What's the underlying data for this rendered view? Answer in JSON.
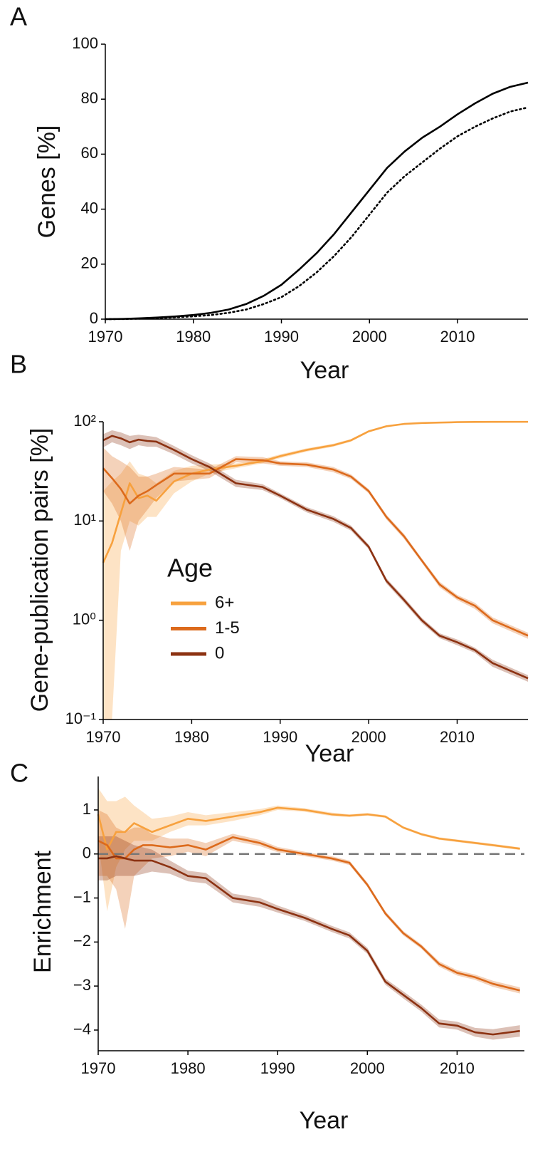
{
  "chart_data": [
    {
      "type": "line",
      "panel_label": "A",
      "x_label": "Year",
      "y_label": "Genes [%]",
      "x": [
        1970,
        1972,
        1974,
        1976,
        1978,
        1980,
        1982,
        1984,
        1986,
        1988,
        1990,
        1992,
        1994,
        1996,
        1998,
        2000,
        2002,
        2004,
        2006,
        2008,
        2010,
        2012,
        2014,
        2016,
        2018
      ],
      "xlim": [
        1970,
        2018
      ],
      "xticks": [
        1970,
        1980,
        1990,
        2000,
        2010
      ],
      "ylim": [
        0,
        100
      ],
      "yticks": [
        0,
        20,
        40,
        60,
        80,
        100
      ],
      "series": [
        {
          "color": "#000000",
          "dash": "solid",
          "values": [
            0,
            0.1,
            0.3,
            0.6,
            1,
            1.5,
            2.3,
            3.5,
            5.5,
            8.5,
            12.5,
            18,
            24,
            31,
            39,
            47,
            55,
            61,
            66,
            70,
            74.5,
            78.5,
            82,
            84.5,
            86
          ]
        },
        {
          "color": "#000000",
          "dash": "dotted",
          "values": [
            0,
            0.05,
            0.2,
            0.4,
            0.7,
            1,
            1.5,
            2.3,
            3.5,
            5.5,
            8,
            12,
            17,
            23,
            30,
            38,
            46,
            52,
            57,
            62,
            66.5,
            70,
            73,
            75.5,
            77
          ]
        }
      ]
    },
    {
      "type": "line",
      "panel_label": "B",
      "x_label": "Year",
      "y_label": "Gene-publication pairs [%]",
      "yscale": "log",
      "legend": "center left",
      "legend_title": "Age",
      "x": [
        1970,
        1971,
        1972,
        1973,
        1974,
        1975,
        1976,
        1978,
        1980,
        1982,
        1985,
        1988,
        1990,
        1993,
        1996,
        1998,
        2000,
        2002,
        2004,
        2006,
        2008,
        2010,
        2012,
        2014,
        2018
      ],
      "xlim": [
        1970,
        2018
      ],
      "xticks": [
        1970,
        1980,
        1990,
        2000,
        2010
      ],
      "ylim": [
        0.1,
        100
      ],
      "yticks": [
        {
          "value": 0.1,
          "label": "10⁻¹"
        },
        {
          "value": 1,
          "label": "10⁰"
        },
        {
          "value": 10,
          "label": "10¹"
        },
        {
          "value": 100,
          "label": "10²"
        }
      ],
      "series": [
        {
          "name": "6+",
          "color": "#f7a13e",
          "values": [
            3.8,
            6,
            12,
            24,
            17,
            18,
            16,
            25,
            30,
            33,
            36,
            40,
            45,
            52,
            58,
            65,
            80,
            90,
            95,
            97,
            98,
            99,
            99.5,
            99.7,
            99.8
          ],
          "lower": [
            0.1,
            0.1,
            5,
            10,
            9,
            11,
            11,
            19,
            25,
            30,
            34,
            38,
            43,
            50,
            56,
            63,
            78,
            88,
            93,
            96,
            97,
            98,
            99,
            99.2,
            99.4
          ],
          "upper": [
            20,
            25,
            30,
            40,
            30,
            28,
            24,
            32,
            36,
            37,
            38,
            42,
            47,
            54,
            60,
            67,
            82,
            92,
            97,
            98,
            99,
            100,
            100,
            100,
            100
          ]
        },
        {
          "name": "1-5",
          "color": "#dc6a1c",
          "values": [
            34,
            27,
            21,
            15,
            18,
            20,
            23,
            30,
            30,
            30,
            42,
            41,
            38,
            37,
            33,
            28,
            20,
            11,
            7,
            4,
            2.3,
            1.7,
            1.4,
            1,
            0.7
          ],
          "lower": [
            20,
            15,
            10,
            5,
            10,
            13,
            17,
            25,
            26,
            27,
            39,
            38,
            36,
            35,
            31,
            26.5,
            19,
            10.4,
            6.6,
            3.8,
            2.15,
            1.6,
            1.3,
            0.93,
            0.65
          ],
          "upper": [
            55,
            45,
            40,
            35,
            28,
            28,
            30,
            35,
            34,
            33,
            45,
            44,
            40,
            39,
            35,
            29.5,
            21,
            11.6,
            7.4,
            4.2,
            2.45,
            1.8,
            1.5,
            1.07,
            0.75
          ]
        },
        {
          "name": "0",
          "color": "#8c3212",
          "values": [
            65,
            72,
            68,
            62,
            66,
            64,
            63,
            52,
            42,
            35,
            24,
            22,
            18,
            13,
            10.5,
            8.5,
            5.5,
            2.5,
            1.6,
            1,
            0.7,
            0.6,
            0.5,
            0.37,
            0.26
          ],
          "lower": [
            55,
            62,
            58,
            53,
            58,
            56,
            56,
            47,
            38,
            32,
            22,
            20.5,
            17,
            12.2,
            9.8,
            8,
            5.2,
            2.35,
            1.5,
            0.94,
            0.66,
            0.56,
            0.47,
            0.34,
            0.24
          ],
          "upper": [
            75,
            82,
            78,
            72,
            74,
            72,
            70,
            57,
            46,
            38,
            26,
            23.5,
            19,
            13.8,
            11.2,
            9,
            5.8,
            2.65,
            1.7,
            1.06,
            0.74,
            0.64,
            0.53,
            0.4,
            0.28
          ]
        }
      ]
    },
    {
      "type": "line",
      "panel_label": "C",
      "x_label": "Year",
      "y_label": "Enrichment",
      "reference_line": 0,
      "x": [
        1970,
        1971,
        1972,
        1973,
        1974,
        1975,
        1976,
        1978,
        1980,
        1982,
        1985,
        1988,
        1990,
        1993,
        1996,
        1998,
        2000,
        2002,
        2004,
        2006,
        2008,
        2010,
        2012,
        2014,
        2017
      ],
      "xlim": [
        1970,
        2017.5
      ],
      "xticks": [
        1970,
        1980,
        1990,
        2000,
        2010
      ],
      "ylim": [
        -4.47,
        1.76
      ],
      "yticks": [
        {
          "value": -4,
          "label": "−4"
        },
        {
          "value": -3,
          "label": "−3"
        },
        {
          "value": -2,
          "label": "−2"
        },
        {
          "value": -1,
          "label": "−1"
        },
        0,
        1
      ],
      "series": [
        {
          "color": "#f7a13e",
          "values": [
            0.9,
            0.1,
            0.5,
            0.5,
            0.7,
            0.6,
            0.5,
            0.65,
            0.8,
            0.75,
            0.85,
            0.95,
            1.05,
            1,
            0.9,
            0.87,
            0.9,
            0.85,
            0.6,
            0.45,
            0.35,
            0.3,
            0.25,
            0.2,
            0.12
          ],
          "lower": [
            0.3,
            -1.3,
            -0.3,
            0.1,
            0.3,
            0.3,
            0.3,
            0.5,
            0.65,
            0.65,
            0.75,
            0.88,
            1,
            0.96,
            0.86,
            0.84,
            0.87,
            0.82,
            0.57,
            0.42,
            0.32,
            0.27,
            0.22,
            0.17,
            0.09
          ],
          "upper": [
            1.5,
            1.2,
            1.2,
            1.3,
            1.1,
            0.95,
            0.8,
            0.85,
            0.95,
            0.88,
            0.95,
            1.02,
            1.1,
            1.04,
            0.94,
            0.9,
            0.93,
            0.88,
            0.63,
            0.48,
            0.38,
            0.33,
            0.28,
            0.23,
            0.15
          ]
        },
        {
          "color": "#dc6a1c",
          "values": [
            0.3,
            0.2,
            -0.1,
            -0.1,
            0.1,
            0.2,
            0.2,
            0.15,
            0.2,
            0.1,
            0.38,
            0.25,
            0.1,
            0,
            -0.1,
            -0.2,
            -0.7,
            -1.35,
            -1.8,
            -2.1,
            -2.5,
            -2.7,
            -2.8,
            -2.95,
            -3.1
          ],
          "lower": [
            -0.5,
            -0.5,
            -0.8,
            -1.7,
            -0.5,
            -0.3,
            -0.1,
            -0.05,
            0.05,
            -0.05,
            0.3,
            0.18,
            0.04,
            -0.05,
            -0.15,
            -0.25,
            -0.75,
            -1.4,
            -1.85,
            -2.15,
            -2.56,
            -2.76,
            -2.86,
            -3.02,
            -3.17
          ],
          "upper": [
            1,
            0.9,
            0.6,
            0.5,
            0.6,
            0.6,
            0.45,
            0.35,
            0.35,
            0.25,
            0.46,
            0.32,
            0.16,
            0.05,
            -0.05,
            -0.15,
            -0.65,
            -1.3,
            -1.75,
            -2.05,
            -2.44,
            -2.64,
            -2.74,
            -2.88,
            -3.03
          ]
        },
        {
          "color": "#8c3212",
          "values": [
            -0.1,
            -0.1,
            -0.05,
            -0.1,
            -0.15,
            -0.15,
            -0.15,
            -0.3,
            -0.5,
            -0.55,
            -1,
            -1.1,
            -1.25,
            -1.45,
            -1.7,
            -1.85,
            -2.2,
            -2.9,
            -3.2,
            -3.5,
            -3.85,
            -3.9,
            -4.05,
            -4.1,
            -4.02
          ],
          "lower": [
            -0.6,
            -0.6,
            -0.5,
            -0.5,
            -0.5,
            -0.45,
            -0.4,
            -0.45,
            -0.62,
            -0.67,
            -1.1,
            -1.2,
            -1.33,
            -1.52,
            -1.77,
            -1.92,
            -2.27,
            -2.97,
            -3.28,
            -3.58,
            -3.94,
            -3.99,
            -4.15,
            -4.22,
            -4.15
          ],
          "upper": [
            0.4,
            0.4,
            0.4,
            0.3,
            0.2,
            0.15,
            0.1,
            -0.15,
            -0.38,
            -0.43,
            -0.9,
            -1,
            -1.17,
            -1.38,
            -1.63,
            -1.78,
            -2.13,
            -2.83,
            -3.12,
            -3.42,
            -3.76,
            -3.81,
            -3.95,
            -3.98,
            -3.89
          ]
        }
      ]
    }
  ]
}
